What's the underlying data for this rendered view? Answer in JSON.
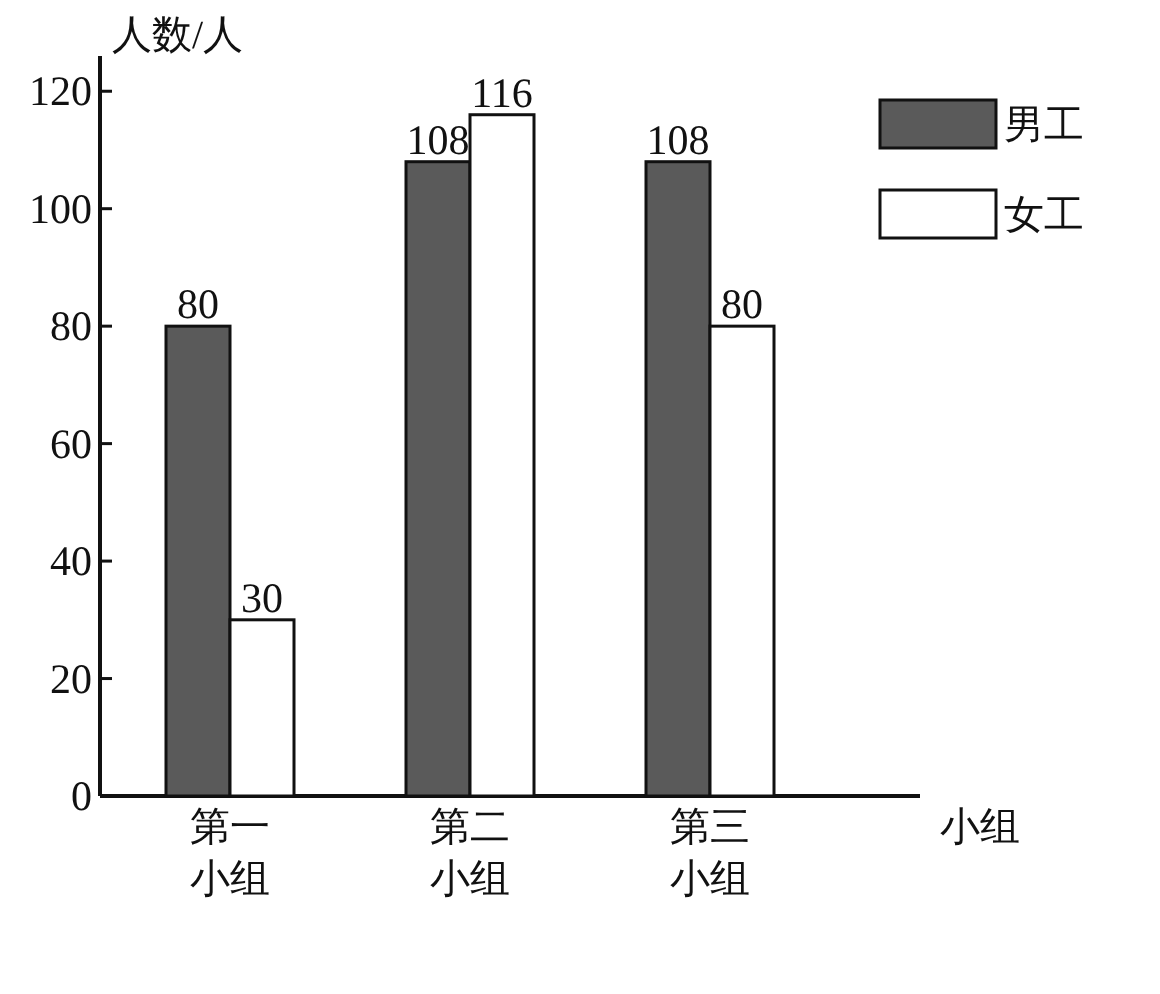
{
  "chart_data": {
    "type": "bar",
    "ylabel": "人数/人",
    "xlabel": "小组",
    "categories": [
      "第一小组",
      "第二小组",
      "第三小组"
    ],
    "series": [
      {
        "name": "男工",
        "color": "#5a5a5a",
        "values": [
          80,
          108,
          108
        ]
      },
      {
        "name": "女工",
        "color": "#ffffff",
        "values": [
          30,
          116,
          80
        ]
      }
    ],
    "ylim": [
      0,
      126
    ],
    "yticks": [
      0,
      20,
      40,
      60,
      80,
      100,
      120
    ],
    "data_labels": true,
    "legend": "top right",
    "grid": false
  }
}
